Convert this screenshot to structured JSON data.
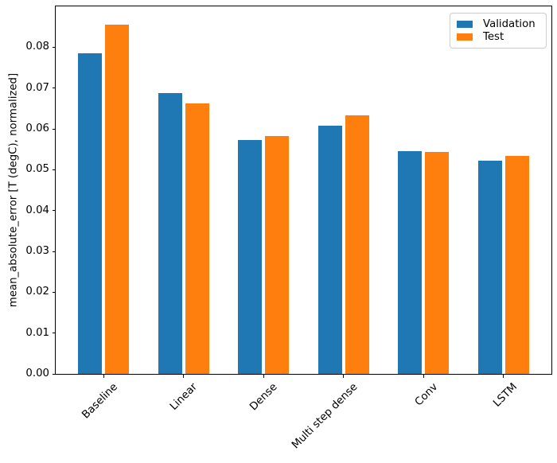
{
  "figure": {
    "background": "#ffffff",
    "spine_color": "#000000",
    "tick_color": "#000000",
    "legend_border_color": "#cccccc"
  },
  "chart_data": {
    "type": "bar",
    "title": "",
    "xlabel": "",
    "ylabel": "mean_absolute_error [T (degC), normalized]",
    "categories": [
      "Baseline",
      "Linear",
      "Dense",
      "Multi step dense",
      "Conv",
      "LSTM"
    ],
    "series": [
      {
        "name": "Validation",
        "color": "#1f77b4",
        "values": [
          0.0785,
          0.0687,
          0.0572,
          0.0607,
          0.0545,
          0.0523
        ]
      },
      {
        "name": "Test",
        "color": "#ff7f0e",
        "values": [
          0.0855,
          0.0663,
          0.0583,
          0.0634,
          0.0543,
          0.0533
        ]
      }
    ],
    "ylim": [
      0,
      0.09
    ],
    "xlim": [
      -0.6,
      5.6
    ],
    "yticks": [
      "0.00",
      "0.01",
      "0.02",
      "0.03",
      "0.04",
      "0.05",
      "0.06",
      "0.07",
      "0.08"
    ],
    "x_tick_rotation_deg": 45,
    "bar_width": 0.3,
    "bar_offsets": [
      -0.17,
      0.17
    ],
    "grid": false,
    "legend_position": "upper-right"
  }
}
